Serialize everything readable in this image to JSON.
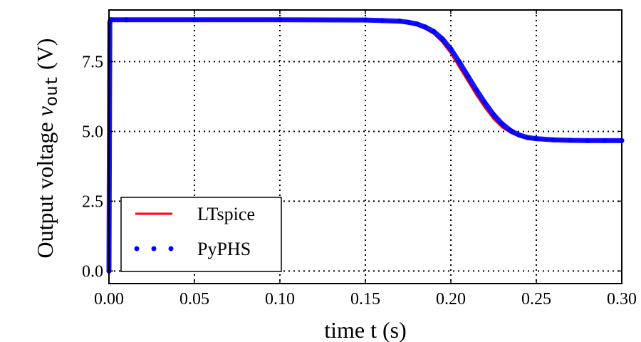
{
  "chart_data": {
    "type": "line",
    "title": "",
    "xlabel": "time t (s)",
    "ylabel": "Output voltage ",
    "ylabel_var": "v",
    "ylabel_sub": "out",
    "ylabel_unit": " (V)",
    "xlim": [
      0.0,
      0.3
    ],
    "ylim": [
      -0.45,
      9.35
    ],
    "xticks": [
      0.0,
      0.05,
      0.1,
      0.15,
      0.2,
      0.25,
      0.3
    ],
    "xtick_labels": [
      "0.00",
      "0.05",
      "0.10",
      "0.15",
      "0.20",
      "0.25",
      "0.30"
    ],
    "yticks": [
      0.0,
      2.5,
      5.0,
      7.5
    ],
    "ytick_labels": [
      "0.0",
      "2.5",
      "5.0",
      "7.5"
    ],
    "grid": true,
    "legend_position": "bottom-left",
    "series": [
      {
        "name": "LTspice",
        "style": "line",
        "color": "#ff0000",
        "x": [
          0.0,
          0.0005,
          0.001,
          0.01,
          0.05,
          0.1,
          0.15,
          0.16,
          0.17,
          0.175,
          0.18,
          0.185,
          0.19,
          0.195,
          0.2,
          0.205,
          0.21,
          0.215,
          0.22,
          0.225,
          0.23,
          0.235,
          0.24,
          0.245,
          0.25,
          0.26,
          0.27,
          0.28,
          0.29,
          0.3
        ],
        "y": [
          0.0,
          8.9,
          9.0,
          9.0,
          9.0,
          9.0,
          8.98,
          8.96,
          8.93,
          8.88,
          8.8,
          8.68,
          8.5,
          8.2,
          7.8,
          7.3,
          6.8,
          6.3,
          5.85,
          5.45,
          5.15,
          4.95,
          4.82,
          4.75,
          4.72,
          4.69,
          4.68,
          4.67,
          4.67,
          4.67
        ]
      },
      {
        "name": "PyPHS",
        "style": "dots",
        "color": "#0000ff",
        "x": [
          0.0,
          0.0005,
          0.001,
          0.01,
          0.05,
          0.1,
          0.15,
          0.16,
          0.17,
          0.175,
          0.18,
          0.185,
          0.19,
          0.195,
          0.2,
          0.205,
          0.21,
          0.215,
          0.22,
          0.225,
          0.23,
          0.235,
          0.24,
          0.245,
          0.25,
          0.26,
          0.27,
          0.28,
          0.29,
          0.3
        ],
        "y": [
          0.0,
          8.9,
          9.0,
          9.0,
          9.0,
          9.0,
          8.99,
          8.97,
          8.95,
          8.91,
          8.85,
          8.74,
          8.58,
          8.32,
          7.95,
          7.48,
          6.98,
          6.48,
          6.02,
          5.6,
          5.27,
          5.03,
          4.87,
          4.78,
          4.74,
          4.7,
          4.68,
          4.67,
          4.67,
          4.67
        ]
      }
    ]
  }
}
